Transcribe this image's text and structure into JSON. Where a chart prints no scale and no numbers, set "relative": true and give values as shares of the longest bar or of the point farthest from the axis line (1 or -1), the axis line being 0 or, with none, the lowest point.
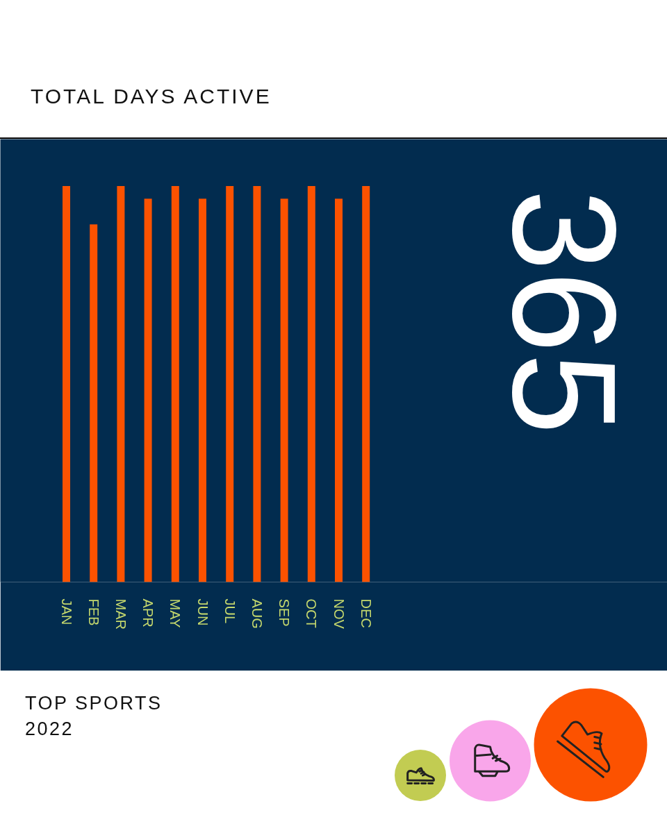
{
  "chart_data": [
    {
      "type": "bar",
      "title": "TOTAL DAYS ACTIVE",
      "categories": [
        "JAN",
        "FEB",
        "MAR",
        "APR",
        "MAY",
        "JUN",
        "JUL",
        "AUG",
        "SEP",
        "OCT",
        "NOV",
        "DEC"
      ],
      "values": [
        1,
        0.903,
        1,
        0.968,
        1,
        0.968,
        1,
        1,
        0.968,
        1,
        0.968,
        1
      ],
      "relative": true,
      "color": "#fc5200",
      "annotations": [
        "365"
      ]
    },
    {
      "type": "other",
      "title": "TOP SPORTS",
      "subtitle": "2022"
    }
  ]
}
